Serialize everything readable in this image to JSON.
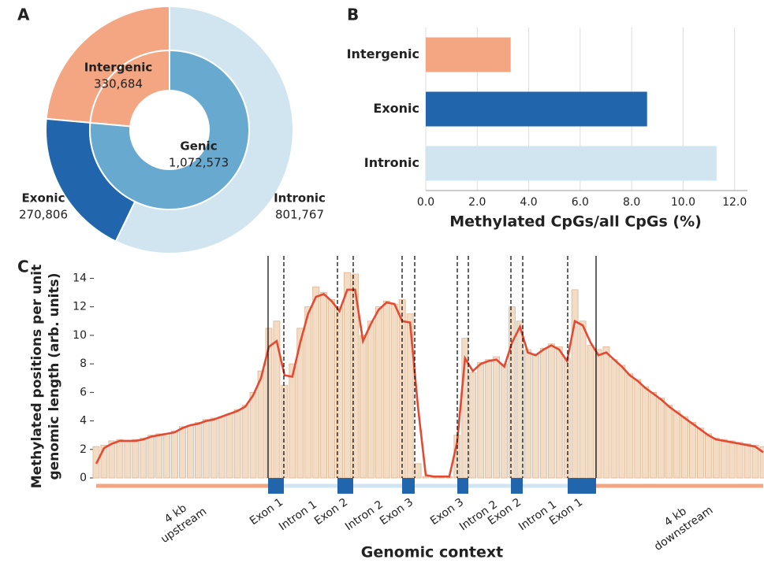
{
  "chart_data": [
    {
      "type": "donut",
      "panel": "A",
      "inner": {
        "categories": [
          "Intergenic",
          "Genic"
        ],
        "values": [
          330684,
          1072573
        ],
        "value_labels": [
          "330,684",
          "1,072,573"
        ],
        "colors": [
          "#f4a582",
          "#67a9cf"
        ]
      },
      "outer": {
        "categories": [
          null,
          "Exonic",
          "Intronic"
        ],
        "values": [
          330684,
          270806,
          801767
        ],
        "value_labels": [
          null,
          "270,806",
          "801,767"
        ],
        "colors": [
          "#f4a582",
          "#2166ac",
          "#d1e5f0"
        ]
      }
    },
    {
      "type": "hbar",
      "panel": "B",
      "categories": [
        "Intergenic",
        "Exonic",
        "Intronic"
      ],
      "values": [
        3.3,
        8.6,
        11.3
      ],
      "colors": [
        "#f4a582",
        "#2166ac",
        "#d1e5f0"
      ],
      "xlim": [
        0,
        12.5
      ],
      "xticks": [
        {
          "value": 0,
          "label": "0.0"
        },
        {
          "value": 2,
          "label": "2.0"
        },
        {
          "value": 4,
          "label": "4.0"
        },
        {
          "value": 6,
          "label": "6.0"
        },
        {
          "value": 8,
          "label": "8.0"
        },
        {
          "value": 10,
          "label": "10.0"
        },
        {
          "value": 12,
          "label": "12.0"
        }
      ],
      "xlabel": "Methylated CpGs/all CpGs (%)",
      "grid": true
    },
    {
      "type": "combo",
      "panel": "C",
      "ylim": [
        0,
        14.3
      ],
      "yticks": [
        0,
        2,
        4,
        6,
        8,
        10,
        12,
        14
      ],
      "ylabel": [
        "Methylated positions per unit",
        "genomic length (arb. units)"
      ],
      "xlabel": "Genomic context",
      "series": [
        {
          "type": "bar",
          "color": "#f2dcc6",
          "values": [
            2.2,
            2.3,
            2.6,
            2.7,
            2.6,
            2.7,
            2.8,
            3.0,
            3.1,
            3.1,
            3.3,
            3.6,
            3.7,
            3.9,
            4.1,
            4.2,
            4.3,
            4.5,
            4.8,
            5.1,
            6.0,
            7.5,
            10.5,
            11.0,
            6.5,
            8.0,
            10.5,
            12.0,
            13.4,
            13.0,
            12.5,
            12.0,
            14.4,
            14.3,
            10.0,
            11.0,
            12.0,
            12.4,
            12.2,
            12.5,
            11.5,
            1.0,
            0.1,
            0.1,
            0.1,
            0.1,
            3.0,
            9.8,
            7.4,
            8.1,
            8.3,
            8.5,
            8.0,
            12.0,
            11.0,
            9.0,
            8.7,
            9.1,
            9.4,
            9.2,
            8.4,
            13.2,
            11.0,
            9.3,
            9.0,
            9.2,
            8.3,
            7.9,
            7.3,
            6.9,
            6.4,
            6.0,
            5.6,
            5.1,
            4.7,
            4.3,
            3.9,
            3.5,
            3.1,
            2.8,
            2.7,
            2.6,
            2.5,
            2.4,
            2.3,
            2.2
          ]
        },
        {
          "type": "line",
          "color": "#e34a33",
          "values": [
            1.0,
            2.1,
            2.4,
            2.6,
            2.6,
            2.6,
            2.7,
            2.9,
            3.0,
            3.1,
            3.2,
            3.5,
            3.7,
            3.8,
            4.0,
            4.1,
            4.3,
            4.5,
            4.7,
            5.0,
            5.8,
            7.0,
            9.2,
            9.6,
            7.2,
            7.1,
            9.5,
            11.5,
            12.7,
            12.9,
            12.4,
            11.7,
            13.2,
            13.2,
            9.6,
            10.8,
            11.8,
            12.3,
            12.2,
            11.0,
            10.9,
            5.0,
            0.2,
            0.1,
            0.1,
            0.1,
            2.5,
            8.4,
            7.5,
            8.0,
            8.2,
            8.3,
            7.8,
            9.5,
            10.6,
            8.8,
            8.6,
            9.0,
            9.3,
            9.0,
            8.2,
            11.0,
            10.7,
            9.5,
            8.6,
            8.8,
            8.3,
            7.8,
            7.2,
            6.8,
            6.3,
            5.9,
            5.5,
            5.0,
            4.6,
            4.2,
            3.8,
            3.4,
            3.0,
            2.7,
            2.6,
            2.5,
            2.4,
            2.3,
            2.2,
            1.8
          ]
        }
      ],
      "regions": [
        {
          "label": [
            "4 kb",
            "upstream"
          ],
          "color": "#f4a582"
        },
        {
          "label": [
            "Exon 1"
          ],
          "color": "#2166ac"
        },
        {
          "label": [
            "Intron 1"
          ],
          "color": "#d1e5f0"
        },
        {
          "label": [
            "Exon 2"
          ],
          "color": "#2166ac"
        },
        {
          "label": [
            "Intron 2"
          ],
          "color": "#d1e5f0"
        },
        {
          "label": [
            "Exon 3"
          ],
          "color": "#2166ac"
        },
        {
          "label": [
            "Exon 3"
          ],
          "color": "#2166ac"
        },
        {
          "label": [
            "Intron  2"
          ],
          "color": "#d1e5f0"
        },
        {
          "label": [
            "Exon 2"
          ],
          "color": "#2166ac"
        },
        {
          "label": [
            "Intron  1"
          ],
          "color": "#d1e5f0"
        },
        {
          "label": [
            "Exon 1"
          ],
          "color": "#2166ac"
        },
        {
          "label": [
            "4 kb",
            "downstream"
          ],
          "color": "#f4a582"
        }
      ]
    }
  ]
}
